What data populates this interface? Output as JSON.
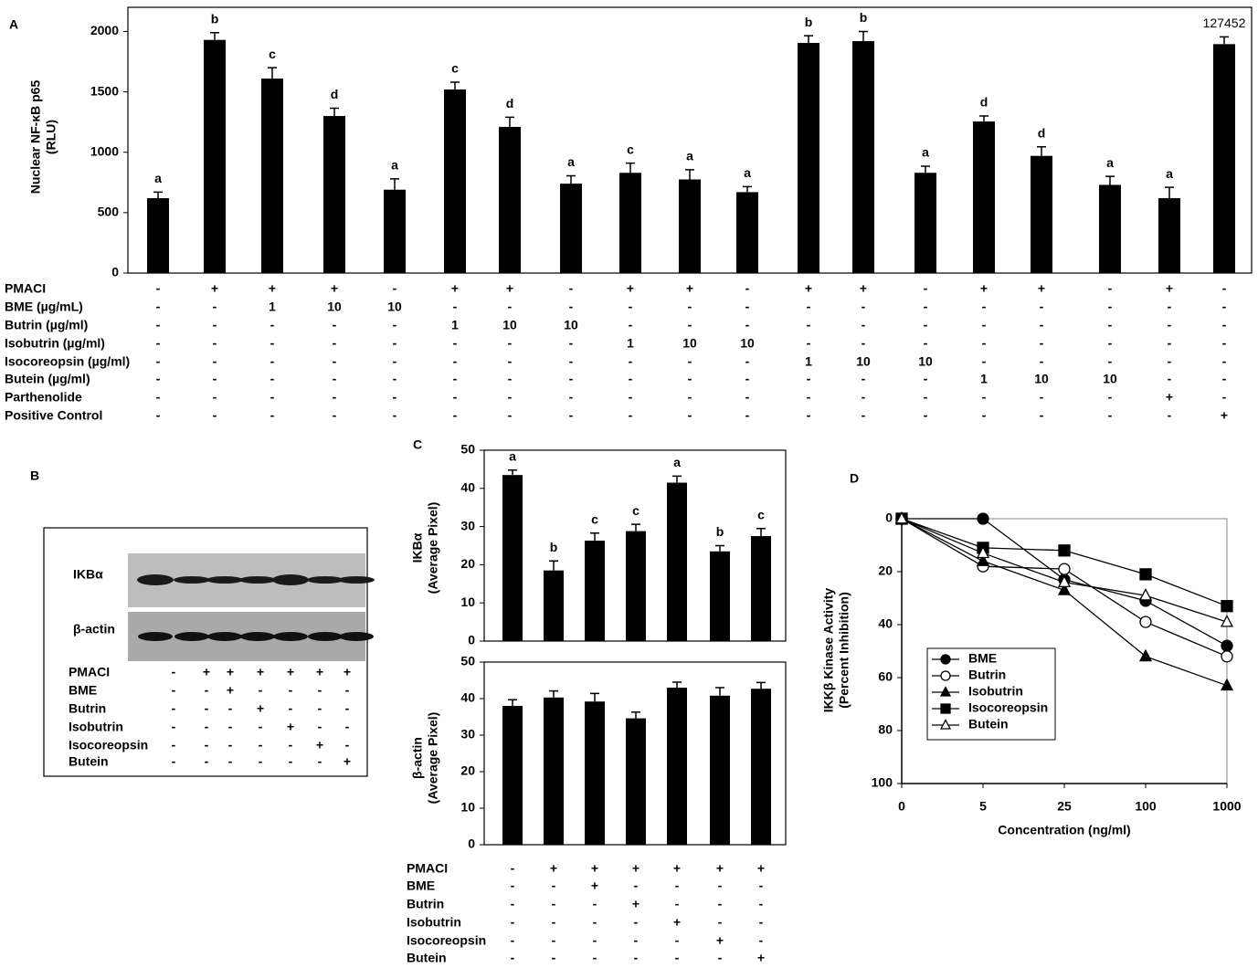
{
  "chart_data": [
    {
      "type": "bar",
      "panel": "A",
      "y_label": [
        "Nuclear NF-κB p65",
        "(RLU)"
      ],
      "categories": [
        null,
        null,
        null,
        null,
        null,
        null,
        null,
        null,
        null,
        null,
        null,
        null,
        null,
        null,
        null,
        null,
        null,
        null,
        null
      ],
      "values": [
        620,
        1930,
        1610,
        1300,
        690,
        1520,
        1210,
        740,
        830,
        775,
        670,
        1905,
        1920,
        830,
        1255,
        970,
        730,
        620,
        1895
      ],
      "errors": [
        50,
        60,
        90,
        65,
        90,
        60,
        80,
        65,
        80,
        80,
        45,
        60,
        80,
        55,
        45,
        75,
        70,
        90,
        60
      ],
      "annotations": [
        "a",
        "b",
        "c",
        "d",
        "a",
        "c",
        "d",
        "a",
        "c",
        "a",
        "a",
        "b",
        "b",
        "a",
        "d",
        "d",
        "a",
        "a",
        "127452"
      ],
      "color": "#000000",
      "ylim": [
        0,
        2200
      ],
      "yticks": [
        0,
        500,
        1000,
        1500,
        2000
      ],
      "treatments": [
        {
          "label": "PMACI",
          "marks": [
            "-",
            "+",
            "+",
            "+",
            "-",
            "+",
            "+",
            "-",
            "+",
            "+",
            "-",
            "+",
            "+",
            "-",
            "+",
            "+",
            "-",
            "+",
            "-"
          ]
        },
        {
          "label": "BME (µg/mL)",
          "marks": [
            "-",
            "-",
            "1",
            "10",
            "10",
            "-",
            "-",
            "-",
            "-",
            "-",
            "-",
            "-",
            "-",
            "-",
            "-",
            "-",
            "-",
            "-",
            "-"
          ]
        },
        {
          "label": "Butrin (µg/ml)",
          "marks": [
            "-",
            "-",
            "-",
            "-",
            "-",
            "1",
            "10",
            "10",
            "-",
            "-",
            "-",
            "-",
            "-",
            "-",
            "-",
            "-",
            "-",
            "-",
            "-"
          ]
        },
        {
          "label": "Isobutrin (µg/ml)",
          "marks": [
            "-",
            "-",
            "-",
            "-",
            "-",
            "-",
            "-",
            "-",
            "1",
            "10",
            "10",
            "-",
            "-",
            "-",
            "-",
            "-",
            "-",
            "-",
            "-"
          ]
        },
        {
          "label": "Isocoreopsin (µg/ml)",
          "marks": [
            "-",
            "-",
            "-",
            "-",
            "-",
            "-",
            "-",
            "-",
            "-",
            "-",
            "-",
            "1",
            "10",
            "10",
            "-",
            "-",
            "-",
            "-",
            "-"
          ]
        },
        {
          "label": "Butein (µg/ml)",
          "marks": [
            "-",
            "-",
            "-",
            "-",
            "-",
            "-",
            "-",
            "-",
            "-",
            "-",
            "-",
            "-",
            "-",
            "-",
            "1",
            "10",
            "10",
            "-",
            "-"
          ]
        },
        {
          "label": "Parthenolide",
          "marks": [
            "-",
            "-",
            "-",
            "-",
            "-",
            "-",
            "-",
            "-",
            "-",
            "-",
            "-",
            "-",
            "-",
            "-",
            "-",
            "-",
            "-",
            "+",
            "-"
          ]
        },
        {
          "label": "Positive Control",
          "marks": [
            "-",
            "-",
            "-",
            "-",
            "-",
            "-",
            "-",
            "-",
            "-",
            "-",
            "-",
            "-",
            "-",
            "-",
            "-",
            "-",
            "-",
            "-",
            "+"
          ]
        }
      ]
    },
    {
      "type": "bar",
      "panel": "C",
      "y_label": [
        "IKBα",
        "(Average Pixel)"
      ],
      "categories": [
        null,
        null,
        null,
        null,
        null,
        null,
        null
      ],
      "values": [
        43.5,
        18.5,
        26.3,
        28.8,
        41.5,
        23.5,
        27.5
      ],
      "errors": [
        1.3,
        2.5,
        2.0,
        1.8,
        1.7,
        1.5,
        2.0
      ],
      "annotations": [
        "a",
        "b",
        "c",
        "c",
        "a",
        "b",
        "c"
      ],
      "color": "#000000",
      "ylim": [
        0,
        50
      ],
      "yticks": [
        0,
        10,
        20,
        30,
        40,
        50
      ]
    },
    {
      "type": "bar",
      "y_label": [
        "β-actin",
        "(Average Pixel)"
      ],
      "categories": [
        null,
        null,
        null,
        null,
        null,
        null,
        null
      ],
      "values": [
        38,
        40.3,
        39.2,
        34.6,
        43,
        40.8,
        42.7
      ],
      "errors": [
        1.7,
        1.8,
        2.2,
        1.7,
        1.5,
        2.2,
        1.7
      ],
      "color": "#000000",
      "ylim": [
        0,
        50
      ],
      "yticks": [
        0,
        10,
        20,
        30,
        40,
        50
      ],
      "treatments": [
        {
          "label": "PMACI",
          "marks": [
            "-",
            "+",
            "+",
            "+",
            "+",
            "+",
            "+"
          ]
        },
        {
          "label": "BME",
          "marks": [
            "-",
            "-",
            "+",
            "-",
            "-",
            "-",
            "-"
          ]
        },
        {
          "label": "Butrin",
          "marks": [
            "-",
            "-",
            "-",
            "+",
            "-",
            "-",
            "-"
          ]
        },
        {
          "label": "Isobutrin",
          "marks": [
            "-",
            "-",
            "-",
            "-",
            "+",
            "-",
            "-"
          ]
        },
        {
          "label": "Isocoreopsin",
          "marks": [
            "-",
            "-",
            "-",
            "-",
            "-",
            "+",
            "-"
          ]
        },
        {
          "label": "Butein",
          "marks": [
            "-",
            "-",
            "-",
            "-",
            "-",
            "-",
            "+"
          ]
        }
      ]
    },
    {
      "type": "line",
      "panel": "D",
      "y_label": [
        "IKKβ Kinase Activity",
        "(Percent Inhibition)"
      ],
      "x_label": "Concentration (ng/ml)",
      "categories": [
        "0",
        "5",
        "25",
        "100",
        "1000"
      ],
      "ylim": [
        0,
        100
      ],
      "yticks": [
        0,
        20,
        40,
        60,
        80,
        100
      ],
      "y_inverted": true,
      "legend": "lower left",
      "series": [
        {
          "name": "BME",
          "color": "#000000",
          "marker": "circle",
          "filled": true,
          "values": [
            0,
            0,
            23,
            31,
            48
          ]
        },
        {
          "name": "Butrin",
          "color": "#000000",
          "marker": "circle",
          "filled": false,
          "values": [
            0,
            18,
            19,
            39,
            52
          ]
        },
        {
          "name": "Isobutrin",
          "color": "#000000",
          "marker": "triangle",
          "filled": true,
          "values": [
            0,
            16,
            27,
            52,
            63
          ]
        },
        {
          "name": "Isocoreopsin",
          "color": "#000000",
          "marker": "square",
          "filled": true,
          "values": [
            0,
            11,
            12,
            21,
            33
          ]
        },
        {
          "name": "Butein",
          "color": "#000000",
          "marker": "triangle",
          "filled": false,
          "values": [
            0,
            13,
            24,
            29,
            39
          ]
        }
      ]
    }
  ],
  "blot": {
    "panel": "B",
    "bands": [
      "IKBα",
      "β-actin"
    ],
    "treatments": [
      {
        "label": "PMACI",
        "marks": [
          "-",
          "+",
          "+",
          "+",
          "+",
          "+",
          "+"
        ]
      },
      {
        "label": "BME",
        "marks": [
          "-",
          "-",
          "+",
          "-",
          "-",
          "-",
          "-"
        ]
      },
      {
        "label": "Butrin",
        "marks": [
          "-",
          "-",
          "-",
          "+",
          "-",
          "-",
          "-"
        ]
      },
      {
        "label": "Isobutrin",
        "marks": [
          "-",
          "-",
          "-",
          "-",
          "+",
          "-",
          "-"
        ]
      },
      {
        "label": "Isocoreopsin",
        "marks": [
          "-",
          "-",
          "-",
          "-",
          "-",
          "+",
          "-"
        ]
      },
      {
        "label": "Butein",
        "marks": [
          "-",
          "-",
          "-",
          "-",
          "-",
          "-",
          "+"
        ]
      }
    ]
  }
}
